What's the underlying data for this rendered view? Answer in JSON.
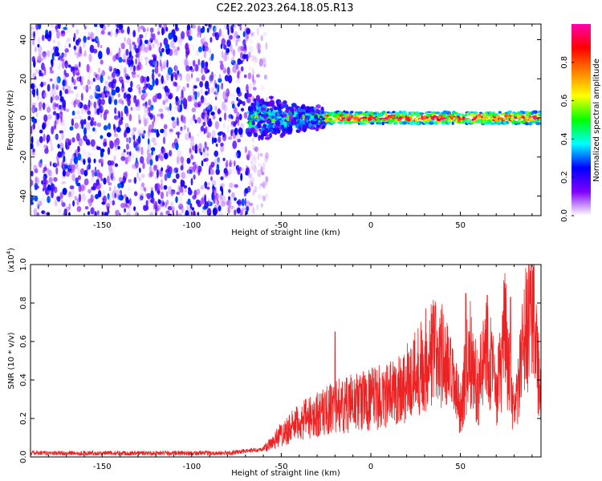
{
  "figure_title": "C2E2.2023.264.18.05.R13",
  "chart_data": [
    {
      "type": "heatmap",
      "title": "",
      "xlabel": "Height of straight line (km)",
      "ylabel": "Frequency (Hz)",
      "xlim": [
        -190,
        95
      ],
      "ylim": [
        -50,
        48
      ],
      "xticks": [
        -150,
        -100,
        -50,
        0,
        50
      ],
      "xtick_labels": [
        "-150",
        "-100",
        "-50",
        "0",
        "50"
      ],
      "yticks": [
        -40,
        -20,
        0,
        20,
        40
      ],
      "ytick_labels": [
        "-40",
        "-20",
        "0",
        "20",
        "40"
      ],
      "colorbar": {
        "label": "Normalized spectral amplitude",
        "range": [
          0,
          1
        ],
        "ticks": [
          0.0,
          0.2,
          0.4,
          0.6,
          0.8
        ],
        "tick_labels": [
          "0.0",
          "0.2",
          "0.4",
          "0.6",
          "0.8"
        ],
        "colormap": [
          "#ffffff",
          "#7f00ff",
          "#0000ff",
          "#00ffff",
          "#00ff00",
          "#ffff00",
          "#ff8000",
          "#ff0000",
          "#ff00aa"
        ]
      },
      "regions": [
        {
          "name": "noise",
          "x_range": [
            -190,
            -58
          ],
          "freq_range": [
            -50,
            48
          ],
          "amplitude_range": [
            0.0,
            0.3
          ]
        },
        {
          "name": "transition",
          "x_range": [
            -68,
            -25
          ],
          "freq_range": [
            -12,
            15
          ],
          "amplitude_range": [
            0.1,
            0.6
          ]
        },
        {
          "name": "signal",
          "x_range": [
            -25,
            95
          ],
          "center_freq": 0,
          "half_width": 3,
          "amplitude_range": [
            0.4,
            1.0
          ]
        }
      ],
      "grid": false
    },
    {
      "type": "line",
      "title": "",
      "xlabel": "Height of straight line (km)",
      "ylabel": "SNR (10 * v/v)",
      "y_scale_label": "(x10",
      "y_scale_exponent": "4",
      "xlim": [
        -190,
        95
      ],
      "ylim": [
        0,
        1.0
      ],
      "xticks": [
        -150,
        -100,
        -50,
        0,
        50
      ],
      "xtick_labels": [
        "-150",
        "-100",
        "-50",
        "0",
        "50"
      ],
      "yticks": [
        0.0,
        0.2,
        0.4,
        0.6,
        0.8,
        1.0
      ],
      "ytick_labels": [
        "0.0",
        "0.2",
        "0.4",
        "0.6",
        "0.8",
        "1.0"
      ],
      "color": "#ee2222",
      "envelope": {
        "x": [
          -190,
          -80,
          -60,
          -50,
          -40,
          -30,
          -20,
          -10,
          0,
          10,
          20,
          30,
          35,
          40,
          45,
          50,
          55,
          60,
          65,
          70,
          75,
          80,
          85,
          90,
          95
        ],
        "y": [
          0.02,
          0.02,
          0.04,
          0.12,
          0.18,
          0.22,
          0.26,
          0.28,
          0.3,
          0.32,
          0.38,
          0.5,
          0.55,
          0.52,
          0.4,
          0.25,
          0.55,
          0.35,
          0.62,
          0.3,
          0.65,
          0.2,
          0.55,
          0.85,
          0.3
        ]
      },
      "peaks": [
        {
          "x": -20,
          "y": 0.65
        },
        {
          "x": 53,
          "y": 0.85
        },
        {
          "x": 65,
          "y": 0.84
        },
        {
          "x": 78,
          "y": 0.83
        },
        {
          "x": 91,
          "y": 1.0
        }
      ],
      "grid": false
    }
  ]
}
